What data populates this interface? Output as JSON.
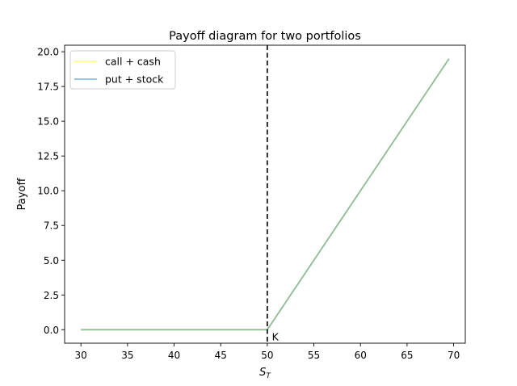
{
  "chart_data": {
    "type": "line",
    "title": "Payoff diagram for two portfolios",
    "xlabel": "S",
    "xlabel_subscript": "T",
    "ylabel": "Payoff",
    "xlim": [
      28.25,
      71.25
    ],
    "ylim": [
      -0.97,
      20.47
    ],
    "xticks": [
      30,
      35,
      40,
      45,
      50,
      55,
      60,
      65,
      70
    ],
    "xtick_labels": [
      "30",
      "35",
      "40",
      "45",
      "50",
      "55",
      "60",
      "65",
      "70"
    ],
    "yticks": [
      0,
      2.5,
      5,
      7.5,
      10,
      12.5,
      15,
      17.5,
      20
    ],
    "ytick_labels": [
      "0.0",
      "2.5",
      "5.0",
      "7.5",
      "10.0",
      "12.5",
      "15.0",
      "17.5",
      "20.0"
    ],
    "grid": false,
    "legend_position": "upper-left",
    "series": [
      {
        "name": "call + cash",
        "color": "#ffff00",
        "alpha": 0.5,
        "x": [
          30,
          50,
          69.5
        ],
        "y": [
          0,
          0,
          19.5
        ]
      },
      {
        "name": "put + stock",
        "color": "#1f77b4",
        "alpha": 0.5,
        "x": [
          30,
          50,
          69.5
        ],
        "y": [
          0,
          0,
          19.5
        ]
      }
    ],
    "vline": {
      "x": 50,
      "style": "dashed",
      "color": "#000000"
    },
    "annotations": [
      {
        "text": "K",
        "x": 50.5,
        "y": -0.3
      }
    ]
  }
}
